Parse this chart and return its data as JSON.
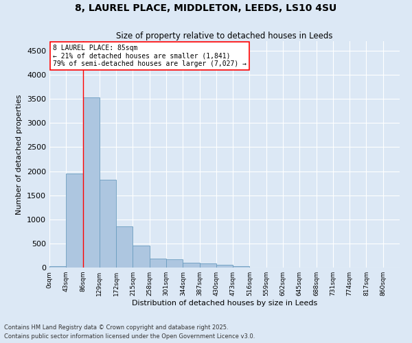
{
  "title1": "8, LAUREL PLACE, MIDDLETON, LEEDS, LS10 4SU",
  "title2": "Size of property relative to detached houses in Leeds",
  "xlabel": "Distribution of detached houses by size in Leeds",
  "ylabel": "Number of detached properties",
  "bar_color": "#adc6e0",
  "bar_edge_color": "#6a9cbf",
  "background_color": "#dce8f5",
  "grid_color": "#ffffff",
  "bin_labels": [
    "0sqm",
    "43sqm",
    "86sqm",
    "129sqm",
    "172sqm",
    "215sqm",
    "258sqm",
    "301sqm",
    "344sqm",
    "387sqm",
    "430sqm",
    "473sqm",
    "516sqm",
    "559sqm",
    "602sqm",
    "645sqm",
    "688sqm",
    "731sqm",
    "774sqm",
    "817sqm",
    "860sqm"
  ],
  "bar_heights": [
    30,
    1950,
    3530,
    1820,
    860,
    450,
    185,
    175,
    95,
    80,
    50,
    35,
    0,
    0,
    0,
    0,
    0,
    0,
    0,
    0,
    0
  ],
  "property_label": "8 LAUREL PLACE: 85sqm",
  "pct_smaller": 21,
  "n_smaller": "1,841",
  "pct_larger": 79,
  "n_larger": "7,027",
  "vline_x_bin": 2,
  "ylim": [
    0,
    4700
  ],
  "yticks": [
    0,
    500,
    1000,
    1500,
    2000,
    2500,
    3000,
    3500,
    4000,
    4500
  ],
  "footnote1": "Contains HM Land Registry data © Crown copyright and database right 2025.",
  "footnote2": "Contains public sector information licensed under the Open Government Licence v3.0.",
  "bin_width": 43
}
